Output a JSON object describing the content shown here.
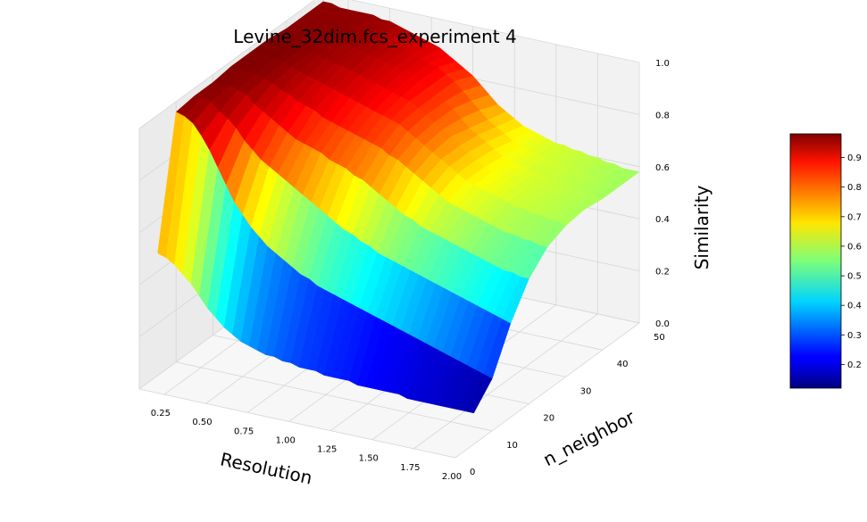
{
  "chart_data": {
    "type": "surface",
    "title": "Levine_32dim.fcs_experiment 4",
    "xlabel": "Resolution",
    "ylabel": "n_neighbor",
    "zlabel": "Similarity",
    "xlim": [
      0.1,
      2.0
    ],
    "ylim": [
      0,
      50
    ],
    "zlim": [
      0.0,
      1.0
    ],
    "x_ticks": [
      "0.25",
      "0.50",
      "0.75",
      "1.00",
      "1.25",
      "1.50",
      "1.75",
      "2.00"
    ],
    "y_ticks": [
      "0",
      "10",
      "20",
      "30",
      "40",
      "50"
    ],
    "z_ticks": [
      "0.0",
      "0.2",
      "0.4",
      "0.6",
      "0.8",
      "1.0"
    ],
    "colormap": "jet",
    "colorbar": {
      "range": [
        0.12,
        0.98
      ],
      "ticks": [
        "0.2",
        "0.3",
        "0.4",
        "0.5",
        "0.6",
        "0.7",
        "0.8",
        "0.9"
      ]
    },
    "resolution": [
      0.1,
      0.15,
      0.2,
      0.25,
      0.3,
      0.35,
      0.4,
      0.45,
      0.5,
      0.55,
      0.6,
      0.65,
      0.7,
      0.75,
      0.8,
      0.85,
      0.9,
      0.95,
      1.0,
      1.05,
      1.1,
      1.15,
      1.2,
      1.25,
      1.3,
      1.35,
      1.4,
      1.45,
      1.5,
      1.55,
      1.6,
      1.65,
      1.7,
      1.75,
      1.8,
      1.85,
      1.9,
      1.95,
      2.0
    ],
    "n_neighbor": [
      5,
      10,
      15,
      20,
      25,
      30,
      35,
      40,
      45,
      50
    ],
    "similarity": [
      [
        0.47,
        0.96,
        0.97,
        0.97,
        0.98,
        0.98,
        0.98,
        0.97,
        0.97,
        0.97
      ],
      [
        0.46,
        0.95,
        0.97,
        0.97,
        0.98,
        0.98,
        0.98,
        0.97,
        0.97,
        0.97
      ],
      [
        0.44,
        0.93,
        0.96,
        0.97,
        0.97,
        0.98,
        0.98,
        0.97,
        0.97,
        0.96
      ],
      [
        0.41,
        0.89,
        0.93,
        0.96,
        0.97,
        0.98,
        0.98,
        0.97,
        0.97,
        0.96
      ],
      [
        0.38,
        0.84,
        0.91,
        0.95,
        0.96,
        0.97,
        0.97,
        0.97,
        0.97,
        0.96
      ],
      [
        0.34,
        0.78,
        0.88,
        0.92,
        0.95,
        0.96,
        0.96,
        0.97,
        0.97,
        0.96
      ],
      [
        0.3,
        0.72,
        0.84,
        0.9,
        0.93,
        0.95,
        0.96,
        0.96,
        0.96,
        0.96
      ],
      [
        0.27,
        0.66,
        0.81,
        0.88,
        0.92,
        0.94,
        0.95,
        0.96,
        0.96,
        0.95
      ],
      [
        0.24,
        0.62,
        0.78,
        0.86,
        0.9,
        0.93,
        0.94,
        0.95,
        0.96,
        0.95
      ],
      [
        0.22,
        0.58,
        0.76,
        0.84,
        0.89,
        0.92,
        0.94,
        0.95,
        0.95,
        0.94
      ],
      [
        0.2,
        0.55,
        0.74,
        0.82,
        0.88,
        0.91,
        0.93,
        0.94,
        0.94,
        0.93
      ],
      [
        0.19,
        0.52,
        0.72,
        0.81,
        0.86,
        0.9,
        0.92,
        0.93,
        0.93,
        0.92
      ],
      [
        0.18,
        0.5,
        0.7,
        0.8,
        0.85,
        0.89,
        0.91,
        0.92,
        0.92,
        0.91
      ],
      [
        0.17,
        0.48,
        0.68,
        0.79,
        0.84,
        0.88,
        0.9,
        0.91,
        0.91,
        0.9
      ],
      [
        0.17,
        0.46,
        0.66,
        0.77,
        0.83,
        0.87,
        0.89,
        0.9,
        0.9,
        0.89
      ],
      [
        0.16,
        0.44,
        0.64,
        0.76,
        0.82,
        0.86,
        0.88,
        0.89,
        0.89,
        0.87
      ],
      [
        0.16,
        0.43,
        0.62,
        0.75,
        0.81,
        0.85,
        0.87,
        0.88,
        0.88,
        0.85
      ],
      [
        0.15,
        0.41,
        0.6,
        0.73,
        0.8,
        0.84,
        0.86,
        0.86,
        0.86,
        0.83
      ],
      [
        0.15,
        0.4,
        0.58,
        0.72,
        0.79,
        0.83,
        0.84,
        0.84,
        0.84,
        0.81
      ],
      [
        0.15,
        0.39,
        0.57,
        0.7,
        0.77,
        0.81,
        0.82,
        0.82,
        0.81,
        0.78
      ],
      [
        0.14,
        0.38,
        0.55,
        0.68,
        0.76,
        0.79,
        0.8,
        0.8,
        0.78,
        0.75
      ],
      [
        0.14,
        0.37,
        0.54,
        0.66,
        0.74,
        0.77,
        0.78,
        0.77,
        0.75,
        0.72
      ],
      [
        0.14,
        0.36,
        0.52,
        0.64,
        0.72,
        0.75,
        0.76,
        0.74,
        0.72,
        0.7
      ],
      [
        0.14,
        0.35,
        0.51,
        0.62,
        0.7,
        0.73,
        0.73,
        0.72,
        0.7,
        0.68
      ],
      [
        0.13,
        0.34,
        0.5,
        0.61,
        0.68,
        0.71,
        0.71,
        0.7,
        0.68,
        0.66
      ],
      [
        0.13,
        0.33,
        0.49,
        0.59,
        0.66,
        0.69,
        0.69,
        0.68,
        0.66,
        0.65
      ],
      [
        0.13,
        0.32,
        0.48,
        0.58,
        0.64,
        0.67,
        0.67,
        0.66,
        0.65,
        0.64
      ],
      [
        0.13,
        0.31,
        0.47,
        0.57,
        0.63,
        0.66,
        0.66,
        0.65,
        0.64,
        0.63
      ],
      [
        0.13,
        0.3,
        0.46,
        0.56,
        0.62,
        0.65,
        0.65,
        0.64,
        0.63,
        0.62
      ],
      [
        0.13,
        0.29,
        0.45,
        0.55,
        0.61,
        0.64,
        0.64,
        0.63,
        0.62,
        0.62
      ],
      [
        0.12,
        0.28,
        0.44,
        0.54,
        0.6,
        0.63,
        0.63,
        0.62,
        0.62,
        0.61
      ],
      [
        0.12,
        0.27,
        0.43,
        0.53,
        0.59,
        0.62,
        0.62,
        0.62,
        0.61,
        0.61
      ],
      [
        0.12,
        0.26,
        0.42,
        0.52,
        0.58,
        0.61,
        0.62,
        0.61,
        0.61,
        0.6
      ],
      [
        0.12,
        0.25,
        0.41,
        0.51,
        0.57,
        0.61,
        0.61,
        0.61,
        0.6,
        0.6
      ],
      [
        0.12,
        0.24,
        0.4,
        0.5,
        0.57,
        0.6,
        0.61,
        0.6,
        0.6,
        0.59
      ],
      [
        0.12,
        0.23,
        0.39,
        0.49,
        0.56,
        0.6,
        0.6,
        0.6,
        0.59,
        0.59
      ],
      [
        0.12,
        0.22,
        0.38,
        0.49,
        0.56,
        0.59,
        0.6,
        0.59,
        0.59,
        0.58
      ],
      [
        0.12,
        0.21,
        0.37,
        0.48,
        0.55,
        0.59,
        0.59,
        0.59,
        0.58,
        0.58
      ],
      [
        0.12,
        0.2,
        0.36,
        0.48,
        0.55,
        0.58,
        0.59,
        0.58,
        0.58,
        0.58
      ]
    ]
  }
}
